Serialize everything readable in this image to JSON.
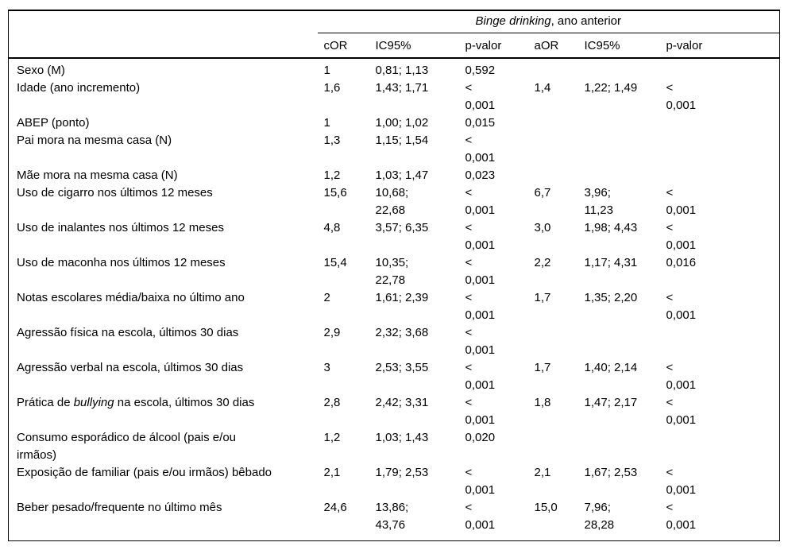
{
  "colors": {
    "text": "#000000",
    "background": "#ffffff",
    "rule": "#000000"
  },
  "table": {
    "title_italic": "Binge drinking",
    "title_rest": ", ano anterior",
    "columns": [
      "cOR",
      "IC95%",
      "p-valor",
      "aOR",
      "IC95%",
      "p-valor"
    ],
    "rows": [
      {
        "label": "Sexo (M)",
        "cor": "1",
        "ic95_crude": "0,81; 1,13",
        "p_crude": "0,592",
        "aor": "",
        "ic95_adj": "",
        "p_adj": ""
      },
      {
        "label": "Idade (ano incremento)",
        "cor": "1,6",
        "ic95_crude": "1,43; 1,71",
        "p_crude": "< 0,001",
        "aor": "1,4",
        "ic95_adj": "1,22; 1,49",
        "p_adj": "< 0,001"
      },
      {
        "label": "ABEP (ponto)",
        "cor": "1",
        "ic95_crude": "1,00; 1,02",
        "p_crude": "0,015",
        "aor": "",
        "ic95_adj": "",
        "p_adj": ""
      },
      {
        "label": "Pai mora na mesma casa (N)",
        "cor": "1,3",
        "ic95_crude": "1,15; 1,54",
        "p_crude": "< 0,001",
        "aor": "",
        "ic95_adj": "",
        "p_adj": ""
      },
      {
        "label": "Mãe mora na mesma casa (N)",
        "cor": "1,2",
        "ic95_crude": "1,03; 1,47",
        "p_crude": "0,023",
        "aor": "",
        "ic95_adj": "",
        "p_adj": ""
      },
      {
        "label": "Uso de cigarro nos últimos 12 meses",
        "cor": "15,6",
        "ic95_crude": "10,68; 22,68",
        "p_crude": "< 0,001",
        "aor": "6,7",
        "ic95_adj": "3,96; 11,23",
        "p_adj": "< 0,001"
      },
      {
        "label": "Uso de inalantes nos últimos 12 meses",
        "cor": "4,8",
        "ic95_crude": "3,57; 6,35",
        "p_crude": "< 0,001",
        "aor": "3,0",
        "ic95_adj": "1,98; 4,43",
        "p_adj": "< 0,001"
      },
      {
        "label": "Uso de maconha nos últimos 12 meses",
        "cor": "15,4",
        "ic95_crude": "10,35; 22,78",
        "p_crude": "< 0,001",
        "aor": "2,2",
        "ic95_adj": "1,17; 4,31",
        "p_adj": "0,016"
      },
      {
        "label": "Notas escolares média/baixa no último ano",
        "cor": "2",
        "ic95_crude": "1,61; 2,39",
        "p_crude": "< 0,001",
        "aor": "1,7",
        "ic95_adj": "1,35; 2,20",
        "p_adj": "< 0,001"
      },
      {
        "label": "Agressão física na escola, últimos 30 dias",
        "cor": "2,9",
        "ic95_crude": "2,32; 3,68",
        "p_crude": "< 0,001",
        "aor": "",
        "ic95_adj": "",
        "p_adj": ""
      },
      {
        "label": "Agressão verbal na escola, últimos 30 dias",
        "cor": "3",
        "ic95_crude": "2,53; 3,55",
        "p_crude": "< 0,001",
        "aor": "1,7",
        "ic95_adj": "1,40; 2,14",
        "p_adj": "< 0,001"
      },
      {
        "label": [
          [
            "Prática de ",
            false
          ],
          [
            "bullying",
            true
          ],
          [
            " na escola, últimos 30 dias",
            false
          ]
        ],
        "cor": "2,8",
        "ic95_crude": "2,42; 3,31",
        "p_crude": "< 0,001",
        "aor": "1,8",
        "ic95_adj": "1,47; 2,17",
        "p_adj": "< 0,001"
      },
      {
        "label": "Consumo esporádico de álcool (pais e/ou irmãos)",
        "cor": "1,2",
        "ic95_crude": "1,03; 1,43",
        "p_crude": "0,020",
        "aor": "",
        "ic95_adj": "",
        "p_adj": ""
      },
      {
        "label": "Exposição de familiar (pais e/ou irmãos) bêbado",
        "cor": "2,1",
        "ic95_crude": "1,79; 2,53",
        "p_crude": "< 0,001",
        "aor": "2,1",
        "ic95_adj": "1,67; 2,53",
        "p_adj": "< 0,001"
      },
      {
        "label": "Beber pesado/frequente no último mês",
        "cor": "24,6",
        "ic95_crude": "13,86; 43,76",
        "p_crude": "< 0,001",
        "aor": "15,0",
        "ic95_adj": "7,96; 28,28",
        "p_adj": "< 0,001"
      }
    ]
  }
}
